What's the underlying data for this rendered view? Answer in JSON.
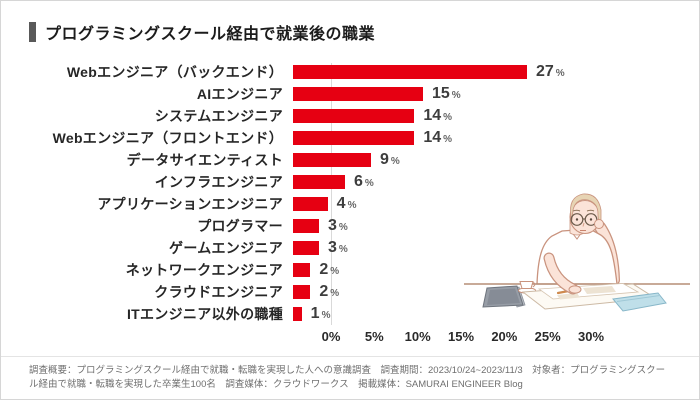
{
  "header": {
    "title": "プログラミングスクール経由で就業後の職業"
  },
  "chart_data": {
    "type": "bar",
    "orientation": "horizontal",
    "title": "プログラミングスクール経由で就業後の職業",
    "categories": [
      "Webエンジニア（バックエンド）",
      "AIエンジニア",
      "システムエンジニア",
      "Webエンジニア（フロントエンド）",
      "データサイエンティスト",
      "インフラエンジニア",
      "アプリケーションエンジニア",
      "プログラマー",
      "ゲームエンジニア",
      "ネットワークエンジニア",
      "クラウドエンジニア",
      "ITエンジニア以外の職種"
    ],
    "values": [
      27,
      15,
      14,
      14,
      9,
      6,
      4,
      3,
      3,
      2,
      2,
      1
    ],
    "unit": "%",
    "xlabel": "",
    "ylabel": "",
    "xlim": [
      0,
      30
    ],
    "x_ticks": [
      0,
      5,
      10,
      15,
      20,
      25,
      30
    ],
    "x_tick_labels": [
      "0%",
      "5%",
      "10%",
      "15%",
      "20%",
      "25%",
      "30%"
    ],
    "bar_color": "#e60012",
    "grid": false,
    "legend": false
  },
  "footer": {
    "note": "調査概要：プログラミングスクール経由で就職・転職を実現した人への意識調査　調査期間：2023/10/24~2023/11/3　対象者：プログラミングスクール経由で就職・転職を実現した卒業生100名　調査媒体：クラウドワークス　掲載媒体：SAMURAI ENGINEER Blog"
  },
  "icons": {
    "illustration": "person-thinking-at-desk-illustration"
  },
  "colors": {
    "bar": "#e60012",
    "title_marker": "#595959",
    "illustration_outline": "#c9937e",
    "illustration_skin": "#fbe3d8",
    "illustration_hair": "#e7d4b4",
    "illustration_book": "#bfdfe9"
  }
}
